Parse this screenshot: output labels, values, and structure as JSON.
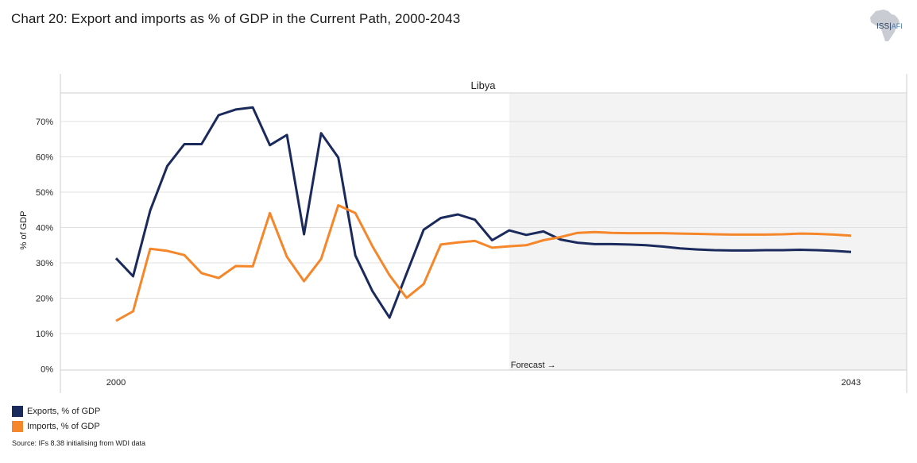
{
  "title": "Chart 20: Export and imports as % of GDP in the Current Path, 2000-2043",
  "logo": {
    "name": "ISS",
    "suffix": "AFI"
  },
  "source": "Source: IFs 8.38 initialising from WDI data",
  "colors": {
    "exports": "#1b2a5c",
    "imports": "#f5862a",
    "forecast_shade": "#f3f3f3",
    "grid": "#e0e0e0",
    "frame": "#cccccc"
  },
  "chart_data": {
    "type": "line",
    "title": "Chart 20: Export and imports as % of GDP in the Current Path, 2000-2043",
    "panel_label": "Libya",
    "xlabel": "",
    "ylabel": "% of GDP",
    "x_tick_labels": [
      "2000",
      "2043"
    ],
    "y_ticks": [
      0,
      10,
      20,
      30,
      40,
      50,
      60,
      70
    ],
    "y_tick_labels": [
      "0%",
      "10%",
      "20%",
      "30%",
      "40%",
      "50%",
      "60%",
      "70%"
    ],
    "xlim": [
      2000,
      2043
    ],
    "ylim": [
      0,
      75
    ],
    "grid": true,
    "forecast_start": 2023,
    "forecast_label": "Forecast →",
    "legend_position": "bottom-left",
    "x": [
      2000,
      2001,
      2002,
      2003,
      2004,
      2005,
      2006,
      2007,
      2008,
      2009,
      2010,
      2011,
      2012,
      2013,
      2014,
      2015,
      2016,
      2017,
      2018,
      2019,
      2020,
      2021,
      2022,
      2023,
      2024,
      2025,
      2026,
      2027,
      2028,
      2029,
      2030,
      2031,
      2032,
      2033,
      2034,
      2035,
      2036,
      2037,
      2038,
      2039,
      2040,
      2041,
      2042,
      2043
    ],
    "series": [
      {
        "name": "Exports, % of GDP",
        "color": "#1b2a5c",
        "values": [
          31.3,
          26.2,
          44.8,
          57.4,
          63.6,
          63.6,
          71.8,
          73.4,
          74.0,
          63.3,
          66.2,
          38.1,
          66.7,
          59.8,
          32.1,
          22.0,
          14.5,
          27.0,
          39.4,
          42.7,
          43.7,
          42.2,
          36.4,
          39.2,
          37.9,
          38.9,
          36.6,
          35.7,
          35.3,
          35.3,
          35.2,
          35.0,
          34.6,
          34.1,
          33.8,
          33.6,
          33.5,
          33.5,
          33.6,
          33.6,
          33.7,
          33.6,
          33.4,
          33.1
        ]
      },
      {
        "name": "Imports, % of GDP",
        "color": "#f5862a",
        "values": [
          13.6,
          16.3,
          34.0,
          33.4,
          32.2,
          27.1,
          25.7,
          29.1,
          29.0,
          44.1,
          31.7,
          24.8,
          31.1,
          46.3,
          44.1,
          34.7,
          26.5,
          20.1,
          24.0,
          35.2,
          35.8,
          36.2,
          34.3,
          34.7,
          35.0,
          36.4,
          37.3,
          38.5,
          38.7,
          38.5,
          38.4,
          38.4,
          38.4,
          38.3,
          38.2,
          38.1,
          38.0,
          38.0,
          38.0,
          38.1,
          38.3,
          38.2,
          38.0,
          37.7
        ]
      }
    ]
  }
}
